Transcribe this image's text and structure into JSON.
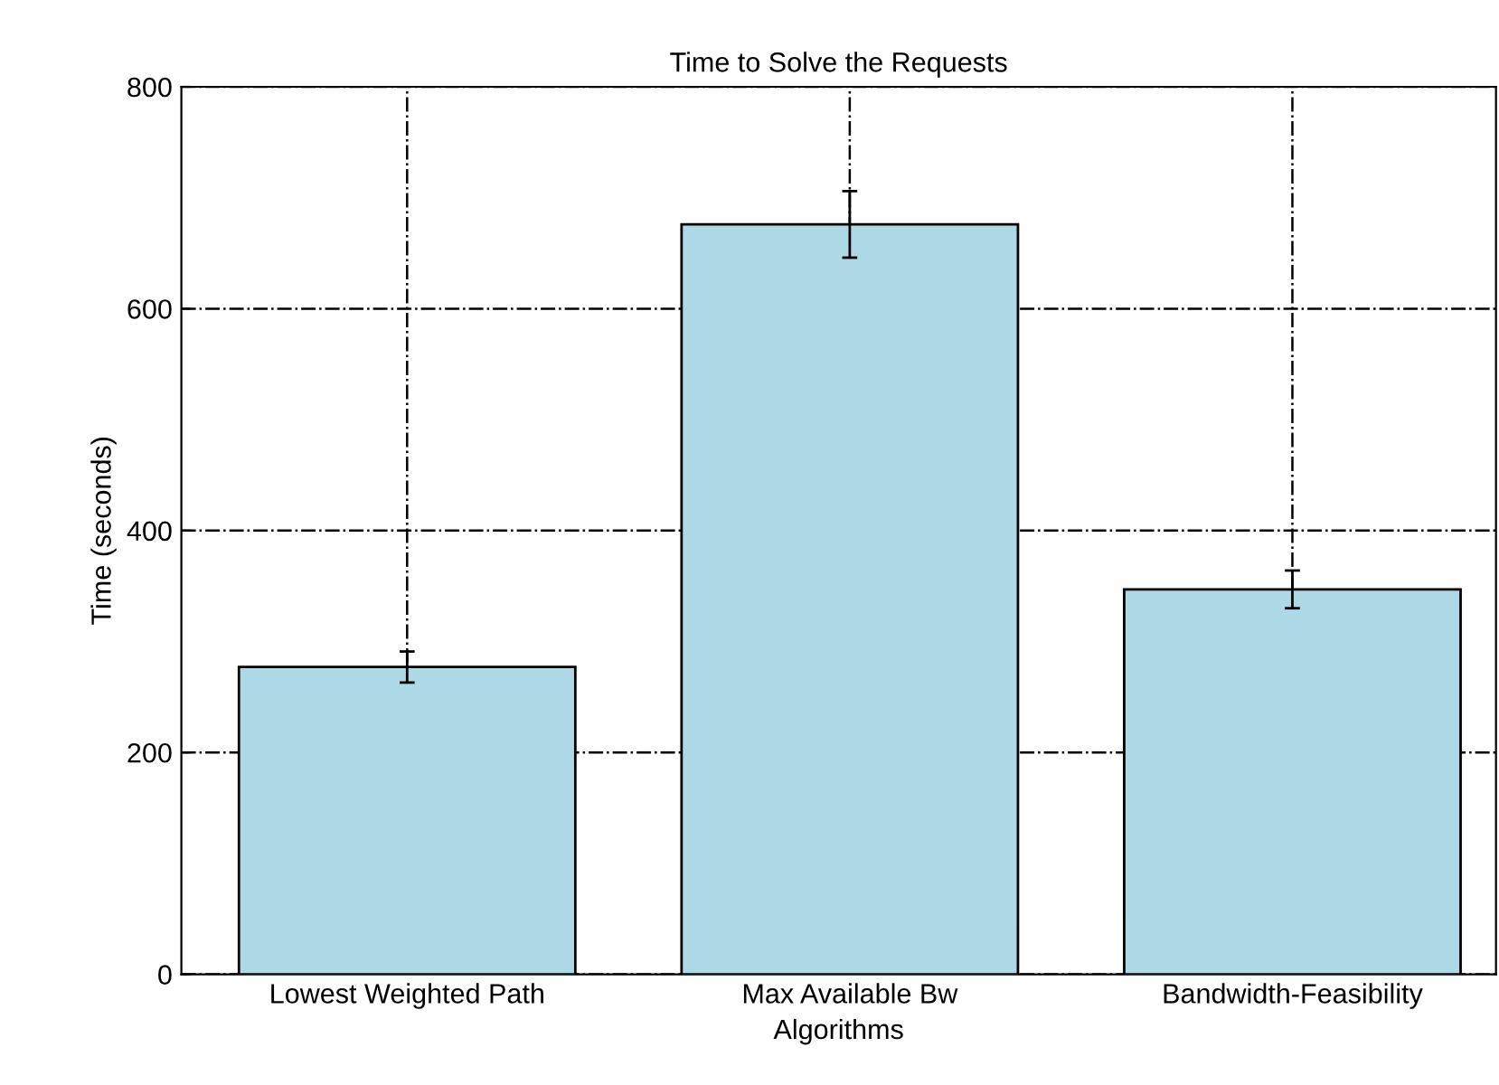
{
  "chart_data": {
    "type": "bar",
    "title": "Time to Solve the Requests",
    "xlabel": "Algorithms",
    "ylabel": "Time (seconds)",
    "categories": [
      "Lowest Weighted Path",
      "Max Available Bw",
      "Bandwidth-Feasibility"
    ],
    "values": [
      277,
      676,
      347
    ],
    "errors": [
      14,
      30,
      17
    ],
    "color": "#add8e6",
    "ylim": [
      0,
      800
    ],
    "yticks": [
      0,
      200,
      400,
      600,
      800
    ],
    "grid": true,
    "line_style": "dashdot"
  }
}
